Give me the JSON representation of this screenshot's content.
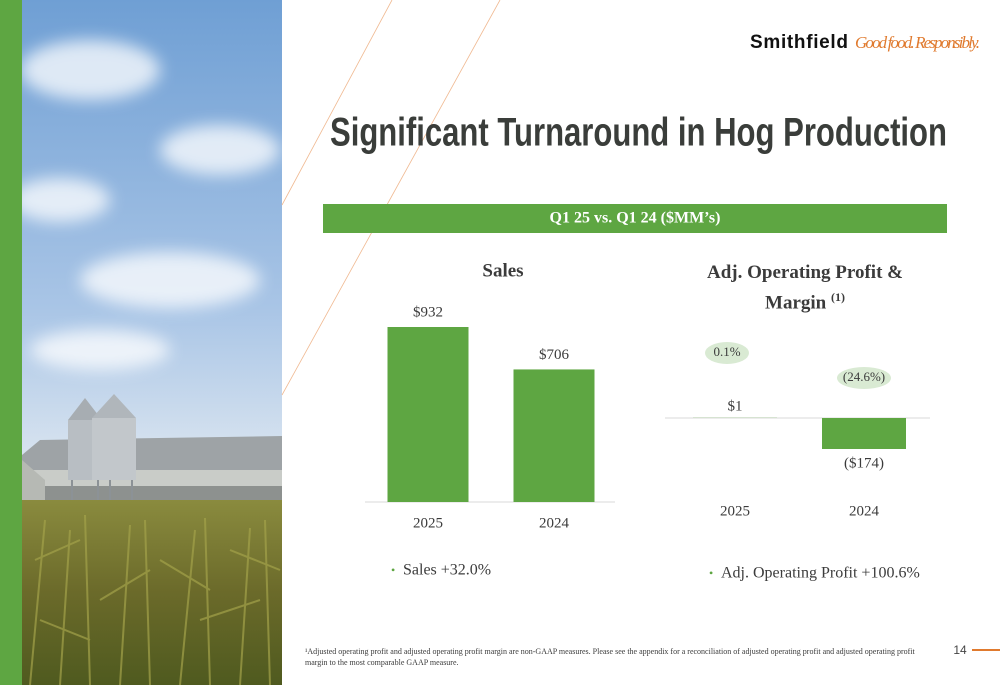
{
  "logo": {
    "brand": "Smithfield",
    "tagline": "Good food. Responsibly."
  },
  "title": "Significant Turnaround in Hog Production",
  "banner": "Q1 25 vs. Q1 24 ($MM’s)",
  "chart_data": [
    {
      "type": "bar",
      "title": "Sales",
      "categories": [
        "2025",
        "2024"
      ],
      "values": [
        932,
        706
      ],
      "value_labels": [
        "$932",
        "$706"
      ],
      "color": "#5ea642",
      "notes": [
        "Sales +32.0%"
      ]
    },
    {
      "type": "bar",
      "title": "Adj. Operating Profit & Margin",
      "title_note": "(1)",
      "categories": [
        "2025",
        "2024"
      ],
      "values": [
        1,
        -174
      ],
      "value_labels": [
        "$1",
        "($174)"
      ],
      "margins": [
        0.1,
        -24.6
      ],
      "margin_labels": [
        "0.1%",
        "(24.6%)"
      ],
      "margin_color": "#d9ead3",
      "color": "#5ea642",
      "notes": [
        "Adj. Operating Profit +100.6%"
      ]
    }
  ],
  "footnote": "¹Adjusted operating profit and adjusted operating profit margin are non-GAAP measures. Please see the appendix for a reconciliation of adjusted operating profit and adjusted operating profit margin to the most comparable GAAP measure.",
  "page_number": "14"
}
